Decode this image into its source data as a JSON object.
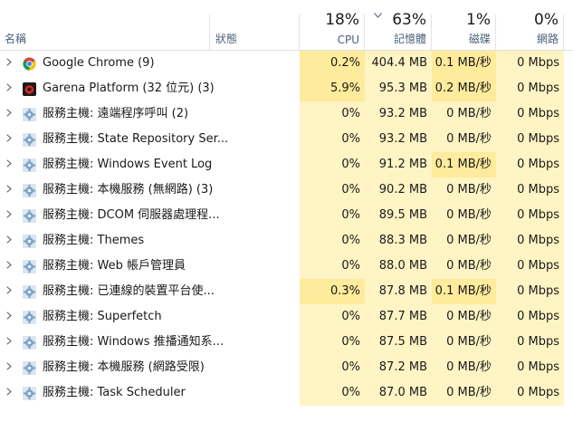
{
  "header": {
    "name_label": "名稱",
    "status_label": "狀態",
    "cpu": {
      "pct": "18%",
      "label": "CPU"
    },
    "memory": {
      "pct": "63%",
      "label": "記憶體"
    },
    "disk": {
      "pct": "1%",
      "label": "磁碟"
    },
    "network": {
      "pct": "0%",
      "label": "網路"
    },
    "sort_indicator": "chevron-down-icon"
  },
  "colors": {
    "usage_light": "#fff4c4",
    "usage_medium": "#ffeb9c",
    "header_label": "#4c607a"
  },
  "rows": [
    {
      "icon": "chrome-icon",
      "name": "Google Chrome (9)",
      "cpu": "0.2%",
      "mem": "404.4 MB",
      "disk": "0.1 MB/秒",
      "net": "0 Mbps"
    },
    {
      "icon": "garena-icon",
      "name": "Garena Platform (32 位元) (3)",
      "cpu": "5.9%",
      "mem": "95.3 MB",
      "disk": "0.2 MB/秒",
      "net": "0 Mbps"
    },
    {
      "icon": "gear-icon",
      "name": "服務主機: 遠端程序呼叫 (2)",
      "cpu": "0%",
      "mem": "93.2 MB",
      "disk": "0 MB/秒",
      "net": "0 Mbps"
    },
    {
      "icon": "gear-icon",
      "name": "服務主機: State Repository Ser...",
      "cpu": "0%",
      "mem": "93.2 MB",
      "disk": "0 MB/秒",
      "net": "0 Mbps"
    },
    {
      "icon": "gear-icon",
      "name": "服務主機: Windows Event Log",
      "cpu": "0%",
      "mem": "91.2 MB",
      "disk": "0.1 MB/秒",
      "net": "0 Mbps"
    },
    {
      "icon": "gear-icon",
      "name": "服務主機: 本機服務 (無網路) (3)",
      "cpu": "0%",
      "mem": "90.2 MB",
      "disk": "0 MB/秒",
      "net": "0 Mbps"
    },
    {
      "icon": "gear-icon",
      "name": "服務主機: DCOM 伺服器處理程...",
      "cpu": "0%",
      "mem": "89.5 MB",
      "disk": "0 MB/秒",
      "net": "0 Mbps"
    },
    {
      "icon": "gear-icon",
      "name": "服務主機: Themes",
      "cpu": "0%",
      "mem": "88.3 MB",
      "disk": "0 MB/秒",
      "net": "0 Mbps"
    },
    {
      "icon": "gear-icon",
      "name": "服務主機: Web 帳戶管理員",
      "cpu": "0%",
      "mem": "88.0 MB",
      "disk": "0 MB/秒",
      "net": "0 Mbps"
    },
    {
      "icon": "gear-icon",
      "name": "服務主機: 已連線的裝置平台使...",
      "cpu": "0.3%",
      "mem": "87.8 MB",
      "disk": "0.1 MB/秒",
      "net": "0 Mbps"
    },
    {
      "icon": "gear-icon",
      "name": "服務主機: Superfetch",
      "cpu": "0%",
      "mem": "87.7 MB",
      "disk": "0 MB/秒",
      "net": "0 Mbps"
    },
    {
      "icon": "gear-icon",
      "name": "服務主機: Windows 推播通知系...",
      "cpu": "0%",
      "mem": "87.5 MB",
      "disk": "0 MB/秒",
      "net": "0 Mbps"
    },
    {
      "icon": "gear-icon",
      "name": "服務主機: 本機服務 (網路受限)",
      "cpu": "0%",
      "mem": "87.2 MB",
      "disk": "0 MB/秒",
      "net": "0 Mbps"
    },
    {
      "icon": "gear-icon",
      "name": "服務主機: Task Scheduler",
      "cpu": "0%",
      "mem": "87.0 MB",
      "disk": "0 MB/秒",
      "net": "0 Mbps"
    }
  ]
}
